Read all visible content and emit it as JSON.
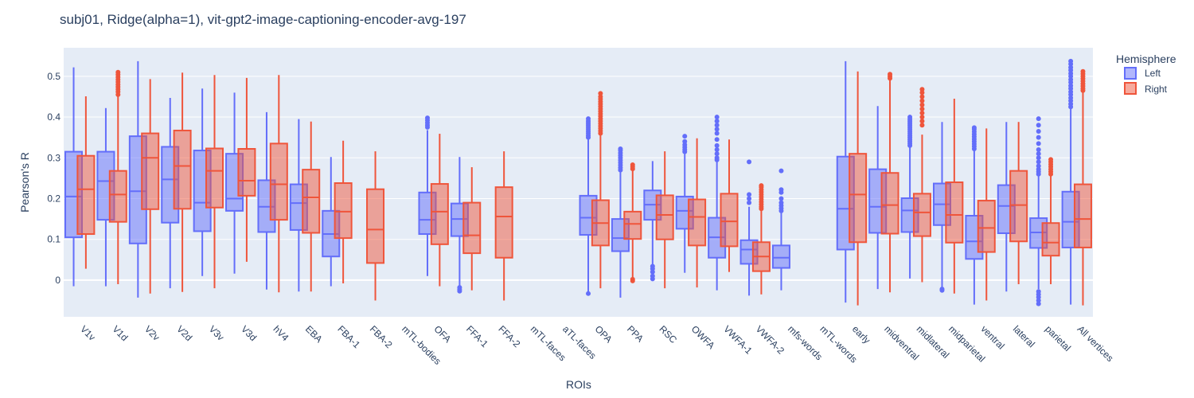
{
  "chart_data": {
    "type": "box",
    "title": "subj01, Ridge(alpha=1), vit-gpt2-image-captioning-encoder-avg-197",
    "xlabel": "ROIs",
    "ylabel": "Pearson's R",
    "ylim": [
      -0.09,
      0.57
    ],
    "yticks": [
      0,
      0.1,
      0.2,
      0.3,
      0.4,
      0.5
    ],
    "ytick_labels": [
      "0",
      "0.1",
      "0.2",
      "0.3",
      "0.4",
      "0.5"
    ],
    "grid": true,
    "legend": {
      "title": "Hemisphere",
      "position": "top-right"
    },
    "categories": [
      "V1v",
      "V1d",
      "V2v",
      "V2d",
      "V3v",
      "V3d",
      "hV4",
      "EBA",
      "FBA-1",
      "FBA-2",
      "mTL-bodies",
      "OFA",
      "FFA-1",
      "FFA-2",
      "mTL-faces",
      "aTL-faces",
      "OPA",
      "PPA",
      "RSC",
      "OWFA",
      "VWFA-1",
      "VWFA-2",
      "mfs-words",
      "mTL-words",
      "early",
      "midventral",
      "midlateral",
      "midparietal",
      "ventral",
      "lateral",
      "parietal",
      "All vertices"
    ],
    "series": [
      {
        "name": "Left",
        "color": "#636efa",
        "fill": "rgba(99,110,250,0.5)",
        "boxes": [
          {
            "cat": "V1v",
            "min": -0.015,
            "q1": 0.105,
            "median": 0.205,
            "q3": 0.315,
            "max": 0.522,
            "outliers": []
          },
          {
            "cat": "V1d",
            "min": -0.015,
            "q1": 0.148,
            "median": 0.243,
            "q3": 0.315,
            "max": 0.422,
            "outliers": []
          },
          {
            "cat": "V2v",
            "min": -0.043,
            "q1": 0.09,
            "median": 0.218,
            "q3": 0.353,
            "max": 0.537,
            "outliers": []
          },
          {
            "cat": "V2d",
            "min": -0.02,
            "q1": 0.141,
            "median": 0.247,
            "q3": 0.327,
            "max": 0.447,
            "outliers": []
          },
          {
            "cat": "V3v",
            "min": 0.01,
            "q1": 0.12,
            "median": 0.19,
            "q3": 0.318,
            "max": 0.47,
            "outliers": []
          },
          {
            "cat": "V3d",
            "min": 0.016,
            "q1": 0.17,
            "median": 0.2,
            "q3": 0.31,
            "max": 0.46,
            "outliers": []
          },
          {
            "cat": "hV4",
            "min": -0.023,
            "q1": 0.118,
            "median": 0.18,
            "q3": 0.245,
            "max": 0.412,
            "outliers": []
          },
          {
            "cat": "EBA",
            "min": -0.028,
            "q1": 0.123,
            "median": 0.189,
            "q3": 0.235,
            "max": 0.395,
            "outliers": []
          },
          {
            "cat": "FBA-1",
            "min": -0.015,
            "q1": 0.058,
            "median": 0.113,
            "q3": 0.17,
            "max": 0.302,
            "outliers": []
          },
          {
            "cat": "OFA",
            "min": 0.01,
            "q1": 0.113,
            "median": 0.148,
            "q3": 0.215,
            "max": 0.368,
            "outliers": [
              0.375,
              0.38,
              0.386,
              0.392,
              0.398
            ]
          },
          {
            "cat": "FFA-1",
            "min": -0.013,
            "q1": 0.108,
            "median": 0.15,
            "q3": 0.188,
            "max": 0.302,
            "outliers": [
              -0.018,
              -0.023,
              -0.027
            ]
          },
          {
            "cat": "OPA",
            "min": -0.028,
            "q1": 0.111,
            "median": 0.153,
            "q3": 0.207,
            "max": 0.345,
            "outliers": [
              -0.033,
              0.35,
              0.355,
              0.36,
              0.365,
              0.37,
              0.375,
              0.38,
              0.385,
              0.39,
              0.396
            ]
          },
          {
            "cat": "PPA",
            "min": -0.043,
            "q1": 0.071,
            "median": 0.103,
            "q3": 0.15,
            "max": 0.265,
            "outliers": [
              0.27,
              0.276,
              0.282,
              0.288,
              0.294,
              0.3,
              0.306,
              0.312,
              0.318,
              0.322
            ]
          },
          {
            "cat": "RSC",
            "min": 0.037,
            "q1": 0.148,
            "median": 0.185,
            "q3": 0.22,
            "max": 0.292,
            "outliers": [
              0.034,
              0.028,
              0.02,
              0.01,
              0.003
            ]
          },
          {
            "cat": "OWFA",
            "min": 0.018,
            "q1": 0.126,
            "median": 0.17,
            "q3": 0.205,
            "max": 0.31,
            "outliers": [
              0.315,
              0.32,
              0.326,
              0.332,
              0.34,
              0.353
            ]
          },
          {
            "cat": "VWFA-1",
            "min": -0.025,
            "q1": 0.055,
            "median": 0.105,
            "q3": 0.153,
            "max": 0.29,
            "outliers": [
              0.295,
              0.3,
              0.31,
              0.32,
              0.33,
              0.345,
              0.36,
              0.37,
              0.38,
              0.39,
              0.4
            ]
          },
          {
            "cat": "VWFA-2",
            "min": -0.038,
            "q1": 0.04,
            "median": 0.075,
            "q3": 0.098,
            "max": 0.18,
            "outliers": [
              0.19,
              0.2,
              0.21,
              0.29
            ]
          },
          {
            "cat": "mfs-words",
            "min": -0.025,
            "q1": 0.03,
            "median": 0.055,
            "q3": 0.085,
            "max": 0.166,
            "outliers": [
              0.17,
              0.176,
              0.183,
              0.19,
              0.2,
              0.215,
              0.222,
              0.268
            ]
          },
          {
            "cat": "early",
            "min": -0.055,
            "q1": 0.075,
            "median": 0.175,
            "q3": 0.303,
            "max": 0.537,
            "outliers": []
          },
          {
            "cat": "midventral",
            "min": -0.022,
            "q1": 0.116,
            "median": 0.18,
            "q3": 0.272,
            "max": 0.427,
            "outliers": []
          },
          {
            "cat": "midlateral",
            "min": 0.004,
            "q1": 0.118,
            "median": 0.171,
            "q3": 0.201,
            "max": 0.325,
            "outliers": [
              0.33,
              0.335,
              0.34,
              0.345,
              0.35,
              0.355,
              0.36,
              0.365,
              0.37,
              0.375,
              0.38,
              0.385,
              0.39,
              0.395,
              0.4
            ]
          },
          {
            "cat": "midparietal",
            "min": -0.02,
            "q1": 0.135,
            "median": 0.186,
            "q3": 0.237,
            "max": 0.388,
            "outliers": [
              -0.022,
              -0.025
            ]
          },
          {
            "cat": "ventral",
            "min": -0.06,
            "q1": 0.052,
            "median": 0.095,
            "q3": 0.158,
            "max": 0.318,
            "outliers": [
              0.322,
              0.328,
              0.334,
              0.34,
              0.346,
              0.352,
              0.358,
              0.364,
              0.37,
              0.374
            ]
          },
          {
            "cat": "lateral",
            "min": -0.028,
            "q1": 0.115,
            "median": 0.182,
            "q3": 0.233,
            "max": 0.388,
            "outliers": []
          },
          {
            "cat": "parietal",
            "min": -0.022,
            "q1": 0.079,
            "median": 0.117,
            "q3": 0.152,
            "max": 0.255,
            "outliers": [
              0.26,
              0.266,
              0.272,
              0.28,
              0.29,
              0.3,
              0.31,
              0.32,
              0.335,
              0.35,
              0.365,
              0.38,
              0.396,
              -0.028,
              -0.035,
              -0.042,
              -0.05,
              -0.058
            ]
          },
          {
            "cat": "All vertices",
            "min": -0.06,
            "q1": 0.08,
            "median": 0.143,
            "q3": 0.217,
            "max": 0.42,
            "outliers": [
              0.425,
              0.432,
              0.44,
              0.447,
              0.455,
              0.462,
              0.47,
              0.477,
              0.485,
              0.492,
              0.5,
              0.507,
              0.515,
              0.522,
              0.53,
              0.537
            ]
          }
        ]
      },
      {
        "name": "Right",
        "color": "#ef553b",
        "fill": "rgba(239,85,59,0.5)",
        "boxes": [
          {
            "cat": "V1v",
            "min": 0.028,
            "q1": 0.113,
            "median": 0.223,
            "q3": 0.305,
            "max": 0.451,
            "outliers": []
          },
          {
            "cat": "V1d",
            "min": -0.01,
            "q1": 0.143,
            "median": 0.21,
            "q3": 0.268,
            "max": 0.45,
            "outliers": [
              0.455,
              0.462,
              0.468,
              0.474,
              0.48,
              0.486,
              0.492,
              0.498,
              0.504,
              0.51
            ]
          },
          {
            "cat": "V2v",
            "min": -0.033,
            "q1": 0.174,
            "median": 0.3,
            "q3": 0.36,
            "max": 0.493,
            "outliers": []
          },
          {
            "cat": "V2d",
            "min": -0.029,
            "q1": 0.175,
            "median": 0.28,
            "q3": 0.367,
            "max": 0.509,
            "outliers": []
          },
          {
            "cat": "V3v",
            "min": -0.02,
            "q1": 0.178,
            "median": 0.268,
            "q3": 0.323,
            "max": 0.503,
            "outliers": []
          },
          {
            "cat": "V3d",
            "min": 0.045,
            "q1": 0.207,
            "median": 0.244,
            "q3": 0.322,
            "max": 0.496,
            "outliers": []
          },
          {
            "cat": "hV4",
            "min": -0.03,
            "q1": 0.148,
            "median": 0.235,
            "q3": 0.335,
            "max": 0.503,
            "outliers": []
          },
          {
            "cat": "EBA",
            "min": -0.028,
            "q1": 0.116,
            "median": 0.203,
            "q3": 0.271,
            "max": 0.389,
            "outliers": []
          },
          {
            "cat": "FBA-1",
            "min": -0.008,
            "q1": 0.103,
            "median": 0.168,
            "q3": 0.238,
            "max": 0.342,
            "outliers": []
          },
          {
            "cat": "FBA-2",
            "min": -0.05,
            "q1": 0.042,
            "median": 0.124,
            "q3": 0.223,
            "max": 0.316,
            "outliers": []
          },
          {
            "cat": "OFA",
            "min": -0.015,
            "q1": 0.088,
            "median": 0.168,
            "q3": 0.236,
            "max": 0.359,
            "outliers": []
          },
          {
            "cat": "FFA-1",
            "min": -0.025,
            "q1": 0.066,
            "median": 0.11,
            "q3": 0.19,
            "max": 0.277,
            "outliers": []
          },
          {
            "cat": "FFA-2",
            "min": -0.05,
            "q1": 0.055,
            "median": 0.156,
            "q3": 0.228,
            "max": 0.316,
            "outliers": []
          },
          {
            "cat": "OPA",
            "min": -0.02,
            "q1": 0.085,
            "median": 0.14,
            "q3": 0.196,
            "max": 0.355,
            "outliers": [
              0.36,
              0.366,
              0.372,
              0.378,
              0.384,
              0.39,
              0.396,
              0.402,
              0.408,
              0.414,
              0.42,
              0.426,
              0.432,
              0.438,
              0.444,
              0.45,
              0.458
            ]
          },
          {
            "cat": "PPA",
            "min": 0.007,
            "q1": 0.101,
            "median": 0.138,
            "q3": 0.168,
            "max": 0.268,
            "outliers": [
              0.273,
              0.278,
              0.283,
              0.002,
              -0.002
            ]
          },
          {
            "cat": "RSC",
            "min": -0.02,
            "q1": 0.1,
            "median": 0.16,
            "q3": 0.208,
            "max": 0.316,
            "outliers": []
          },
          {
            "cat": "OWFA",
            "min": -0.018,
            "q1": 0.085,
            "median": 0.155,
            "q3": 0.198,
            "max": 0.348,
            "outliers": []
          },
          {
            "cat": "VWFA-1",
            "min": 0.02,
            "q1": 0.083,
            "median": 0.144,
            "q3": 0.212,
            "max": 0.345,
            "outliers": []
          },
          {
            "cat": "VWFA-2",
            "min": -0.035,
            "q1": 0.022,
            "median": 0.058,
            "q3": 0.093,
            "max": 0.17,
            "outliers": [
              0.175,
              0.18,
              0.186,
              0.192,
              0.198,
              0.204,
              0.21,
              0.216,
              0.222,
              0.228,
              0.232
            ]
          },
          {
            "cat": "early",
            "min": -0.062,
            "q1": 0.093,
            "median": 0.21,
            "q3": 0.31,
            "max": 0.512,
            "outliers": []
          },
          {
            "cat": "midventral",
            "min": -0.03,
            "q1": 0.114,
            "median": 0.184,
            "q3": 0.263,
            "max": 0.49,
            "outliers": [
              0.495,
              0.5,
              0.505
            ]
          },
          {
            "cat": "midlateral",
            "min": -0.005,
            "q1": 0.108,
            "median": 0.166,
            "q3": 0.212,
            "max": 0.357,
            "outliers": [
              0.38,
              0.39,
              0.4,
              0.41,
              0.42,
              0.43,
              0.44,
              0.45,
              0.46,
              0.468
            ]
          },
          {
            "cat": "midparietal",
            "min": -0.033,
            "q1": 0.092,
            "median": 0.16,
            "q3": 0.24,
            "max": 0.445,
            "outliers": []
          },
          {
            "cat": "ventral",
            "min": -0.05,
            "q1": 0.069,
            "median": 0.128,
            "q3": 0.195,
            "max": 0.372,
            "outliers": []
          },
          {
            "cat": "lateral",
            "min": -0.01,
            "q1": 0.095,
            "median": 0.184,
            "q3": 0.268,
            "max": 0.388,
            "outliers": []
          },
          {
            "cat": "parietal",
            "min": -0.01,
            "q1": 0.06,
            "median": 0.092,
            "q3": 0.14,
            "max": 0.255,
            "outliers": [
              0.26,
              0.266,
              0.272,
              0.278,
              0.284,
              0.29,
              0.296
            ]
          },
          {
            "cat": "All vertices",
            "min": -0.062,
            "q1": 0.08,
            "median": 0.15,
            "q3": 0.235,
            "max": 0.46,
            "outliers": [
              0.465,
              0.47,
              0.476,
              0.482,
              0.488,
              0.494,
              0.5,
              0.506,
              0.512
            ]
          }
        ]
      }
    ]
  }
}
